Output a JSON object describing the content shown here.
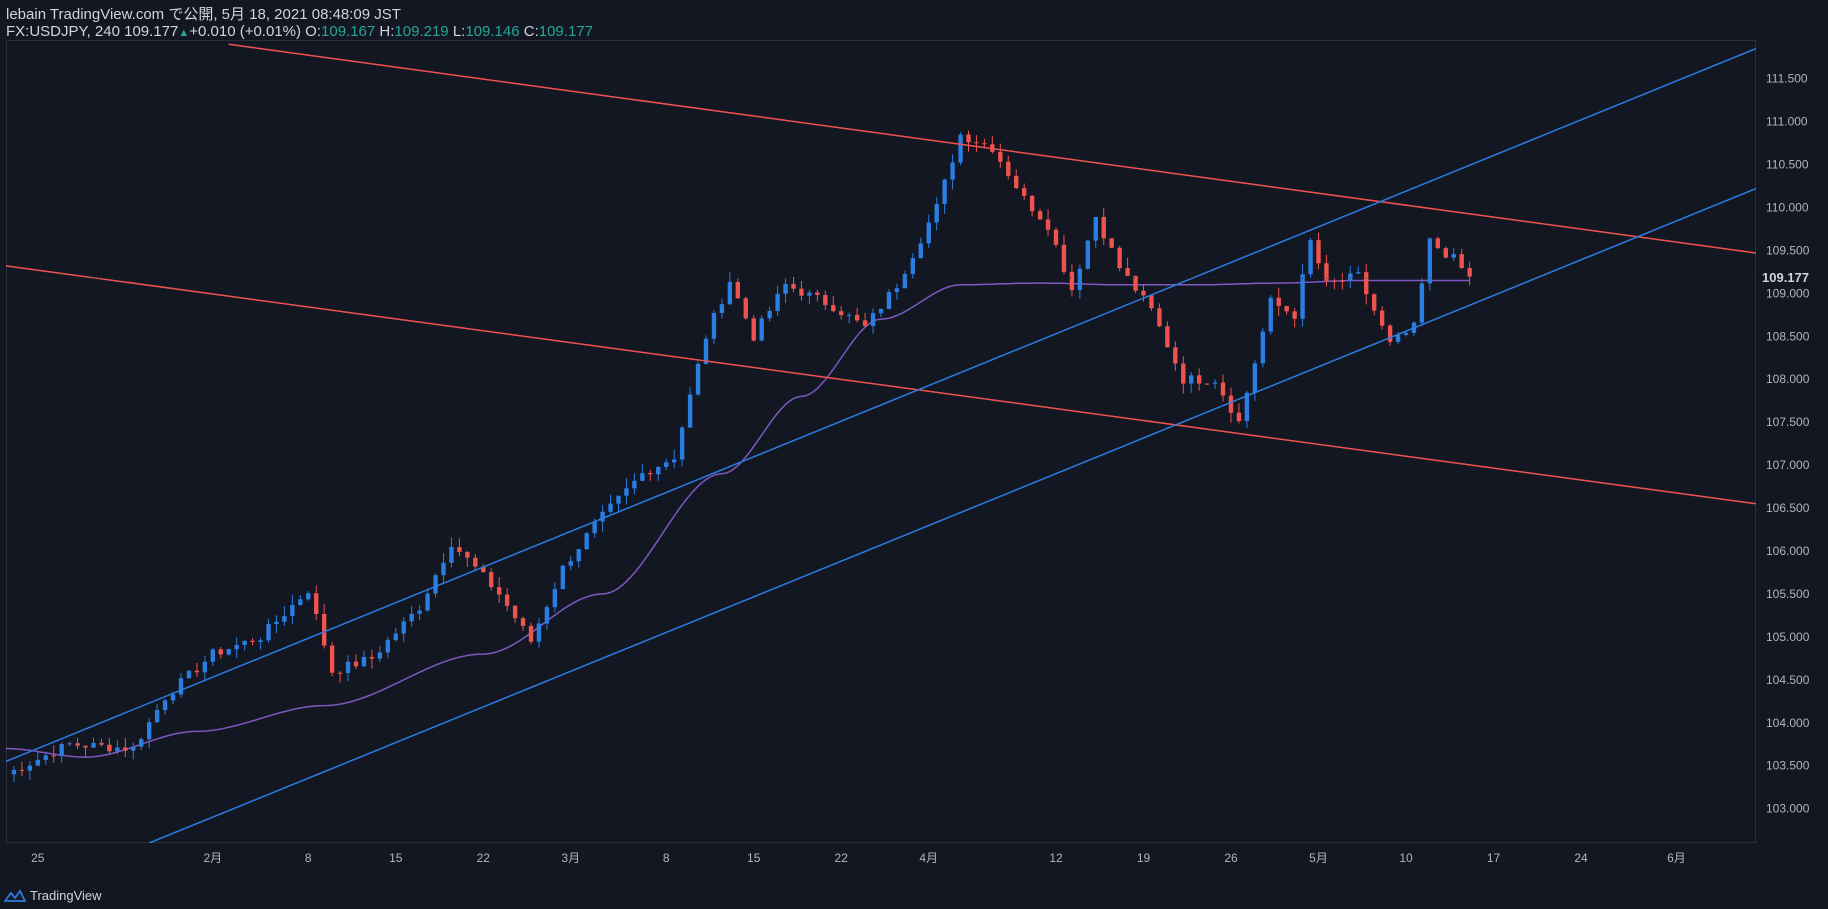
{
  "header": {
    "line1": "lebain TradingView.com で公開, 5月 18, 2021 08:48:09 JST",
    "symbol": "FX:USDJPY, 240",
    "last": "109.177",
    "change": "+0.010 (+0.01%)",
    "o_label": "O:",
    "o_val": "109.167",
    "h_label": "H:",
    "h_val": "109.219",
    "l_label": "L:",
    "l_val": "109.146",
    "c_label": "C:",
    "c_val": "109.177"
  },
  "price_badge": "109.177",
  "footer": {
    "brand": "TradingView"
  },
  "colors": {
    "background": "#131722",
    "up": "#2a7de1",
    "down": "#ef5350",
    "ma": "#7e57c2",
    "trend_red": "#ef5350",
    "trend_blue": "#2a7de1"
  },
  "chart_data": {
    "type": "candlestick",
    "symbol": "FX:USDJPY",
    "timeframe": "240",
    "ylim": [
      102.6,
      111.95
    ],
    "y_ticks": [
      "111.500",
      "111.000",
      "110.500",
      "110.000",
      "109.500",
      "109.000",
      "108.500",
      "108.000",
      "107.500",
      "107.000",
      "106.500",
      "106.000",
      "105.500",
      "105.000",
      "104.500",
      "104.000",
      "103.500",
      "103.000"
    ],
    "x_ticks": [
      "25",
      "2月",
      "8",
      "15",
      "22",
      "3月",
      "8",
      "15",
      "22",
      "4月",
      "12",
      "19",
      "26",
      "5月",
      "10",
      "17",
      "24",
      "6月"
    ],
    "close_path": [
      [
        0,
        103.4
      ],
      [
        8,
        103.75
      ],
      [
        16,
        103.7
      ],
      [
        20,
        104.3
      ],
      [
        26,
        104.8
      ],
      [
        32,
        105.0
      ],
      [
        38,
        105.55
      ],
      [
        41,
        104.6
      ],
      [
        46,
        104.75
      ],
      [
        52,
        105.35
      ],
      [
        56,
        106.1
      ],
      [
        62,
        105.5
      ],
      [
        66,
        104.95
      ],
      [
        70,
        105.8
      ],
      [
        74,
        106.3
      ],
      [
        80,
        106.9
      ],
      [
        84,
        107.1
      ],
      [
        88,
        108.5
      ],
      [
        91,
        109.15
      ],
      [
        94,
        108.5
      ],
      [
        98,
        109.1
      ],
      [
        104,
        108.85
      ],
      [
        108,
        108.6
      ],
      [
        112,
        109.1
      ],
      [
        117,
        110.0
      ],
      [
        120,
        110.85
      ],
      [
        124,
        110.7
      ],
      [
        128,
        110.1
      ],
      [
        131,
        109.8
      ],
      [
        134,
        109.05
      ],
      [
        137,
        109.9
      ],
      [
        140,
        109.3
      ],
      [
        144,
        108.8
      ],
      [
        148,
        108.0
      ],
      [
        152,
        108.0
      ],
      [
        155,
        107.5
      ],
      [
        159,
        108.9
      ],
      [
        162,
        108.75
      ],
      [
        164,
        109.6
      ],
      [
        166,
        109.1
      ],
      [
        170,
        109.2
      ],
      [
        174,
        108.4
      ],
      [
        177,
        108.6
      ],
      [
        179,
        109.6
      ],
      [
        182,
        109.4
      ],
      [
        184,
        109.177
      ]
    ],
    "moving_average": [
      [
        0,
        103.7
      ],
      [
        10,
        103.6
      ],
      [
        24,
        103.9
      ],
      [
        40,
        104.2
      ],
      [
        60,
        104.8
      ],
      [
        75,
        105.5
      ],
      [
        90,
        106.9
      ],
      [
        100,
        107.8
      ],
      [
        110,
        108.7
      ],
      [
        120,
        109.1
      ],
      [
        130,
        109.12
      ],
      [
        140,
        109.1
      ],
      [
        150,
        109.1
      ],
      [
        160,
        109.12
      ],
      [
        170,
        109.15
      ],
      [
        184,
        109.15
      ]
    ],
    "trendlines": [
      {
        "color": "trend_red",
        "x1": 0,
        "y1": 109.32,
        "x2": 220,
        "y2": 106.55
      },
      {
        "color": "trend_red",
        "x1": 28,
        "y1": 111.9,
        "x2": 220,
        "y2": 109.47
      },
      {
        "color": "trend_blue",
        "x1": 0,
        "y1": 103.55,
        "x2": 220,
        "y2": 111.85
      },
      {
        "color": "trend_blue",
        "x1": 18,
        "y1": 102.6,
        "x2": 220,
        "y2": 110.22
      }
    ]
  }
}
